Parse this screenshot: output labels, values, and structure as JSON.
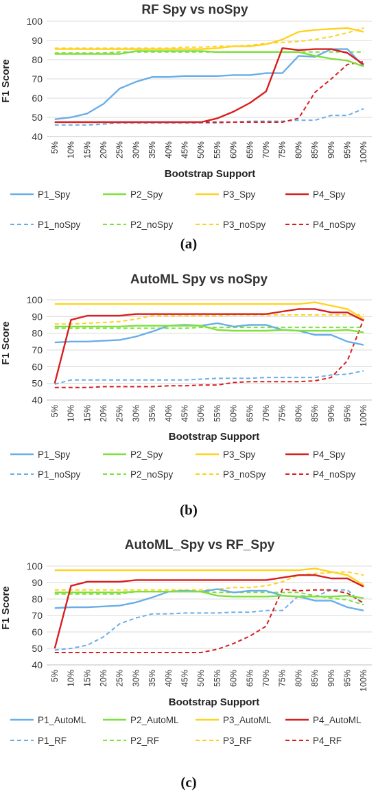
{
  "chart_data": [
    {
      "type": "line",
      "title": "RF Spy vs noSpy",
      "xlabel": "Bootstrap Support",
      "ylabel": "F1 Score",
      "panel_label": "(a)",
      "ylim": [
        40,
        100
      ],
      "yticks": [
        "40",
        "50",
        "60",
        "70",
        "80",
        "90",
        "100"
      ],
      "grid": "horizontal",
      "legend": "bottom",
      "categories": [
        "5%",
        "10%",
        "15%",
        "20%",
        "25%",
        "30%",
        "35%",
        "40%",
        "45%",
        "50%",
        "55%",
        "60%",
        "65%",
        "70%",
        "75%",
        "80%",
        "85%",
        "90%",
        "95%",
        "100%"
      ],
      "series": [
        {
          "name": "P1_Spy",
          "color": "#6aaee8",
          "dash": false,
          "values": [
            49,
            50,
            52,
            57,
            65,
            68.5,
            71,
            71,
            71.5,
            71.5,
            71.5,
            72,
            72,
            73,
            73,
            82,
            81.5,
            85.5,
            85.5,
            76.5
          ]
        },
        {
          "name": "P2_Spy",
          "color": "#7ee03c",
          "dash": false,
          "values": [
            83,
            83,
            83,
            83,
            83,
            84.5,
            84.5,
            84.5,
            84.5,
            84.5,
            84,
            84,
            84,
            84,
            84,
            84,
            82,
            80.5,
            79.5,
            76.5
          ]
        },
        {
          "name": "P3_Spy",
          "color": "#ffd21f",
          "dash": false,
          "values": [
            85.5,
            85.5,
            85.5,
            85.5,
            85.5,
            85.5,
            85.5,
            85.5,
            85.5,
            85.5,
            86,
            87,
            87,
            88,
            90.5,
            94.5,
            95.5,
            96,
            96.5,
            94.5
          ]
        },
        {
          "name": "P4_Spy",
          "color": "#d81e1e",
          "dash": false,
          "values": [
            47.5,
            47.5,
            47.5,
            47.5,
            47.5,
            47.5,
            47.5,
            47.5,
            47.5,
            47.5,
            49.5,
            53,
            57.5,
            63.5,
            86,
            85,
            85.5,
            85.5,
            83.5,
            77.5
          ]
        },
        {
          "name": "P1_noSpy",
          "color": "#6aaee8",
          "dash": true,
          "values": [
            46,
            46,
            46,
            46.5,
            47,
            47,
            47,
            47,
            47,
            47,
            47,
            47.5,
            48,
            48,
            48,
            48.5,
            48.5,
            51,
            51,
            54.5
          ]
        },
        {
          "name": "P2_noSpy",
          "color": "#7ee03c",
          "dash": true,
          "values": [
            83.5,
            83.5,
            83.5,
            83.5,
            84,
            84,
            84,
            84,
            84,
            84,
            84,
            84,
            84,
            84,
            84,
            84,
            84,
            84,
            84,
            84
          ]
        },
        {
          "name": "P3_noSpy",
          "color": "#ffd21f",
          "dash": true,
          "values": [
            86,
            86,
            86,
            86,
            86,
            86,
            86,
            86,
            86.5,
            86.5,
            87,
            87,
            87.5,
            88.5,
            89,
            89.5,
            90.5,
            92,
            94,
            96.5
          ]
        },
        {
          "name": "P4_noSpy",
          "color": "#d81e1e",
          "dash": true,
          "values": [
            47.5,
            47.5,
            47.5,
            47.5,
            47.5,
            47.5,
            47.5,
            47.5,
            47.5,
            47.5,
            47.5,
            47.5,
            47.5,
            47.5,
            47.5,
            49.5,
            63,
            70,
            77.5,
            79
          ]
        }
      ]
    },
    {
      "type": "line",
      "title": "AutoML Spy vs noSpy",
      "xlabel": "Bootstrap Support",
      "ylabel": "F1 Score",
      "panel_label": "(b)",
      "ylim": [
        40,
        100
      ],
      "yticks": [
        "40",
        "50",
        "60",
        "70",
        "80",
        "90",
        "100"
      ],
      "grid": "horizontal",
      "legend": "bottom",
      "categories": [
        "5%",
        "10%",
        "15%",
        "20%",
        "25%",
        "30%",
        "35%",
        "40%",
        "45%",
        "50%",
        "55%",
        "60%",
        "65%",
        "70%",
        "75%",
        "80%",
        "85%",
        "90%",
        "95%",
        "100%"
      ],
      "series": [
        {
          "name": "P1_Spy",
          "color": "#6aaee8",
          "dash": false,
          "values": [
            74.5,
            75,
            75,
            75.5,
            76,
            78,
            81,
            84.5,
            85,
            84.5,
            86,
            84,
            85,
            85,
            82,
            81.5,
            79,
            79,
            75,
            73
          ]
        },
        {
          "name": "P2_Spy",
          "color": "#7ee03c",
          "dash": false,
          "values": [
            84,
            84,
            84,
            84,
            84,
            84.5,
            84.5,
            84.5,
            84.5,
            84.5,
            82,
            81.5,
            81.5,
            81.5,
            82,
            81.5,
            81.5,
            81.5,
            82,
            80.5
          ]
        },
        {
          "name": "P3_Spy",
          "color": "#ffd21f",
          "dash": false,
          "values": [
            97.5,
            97.5,
            97.5,
            97.5,
            97.5,
            97.5,
            97.5,
            97.5,
            97.5,
            97.5,
            97.5,
            97.5,
            97.5,
            97.5,
            97.5,
            97.5,
            98.5,
            96.5,
            94.5,
            88.5
          ]
        },
        {
          "name": "P4_Spy",
          "color": "#d81e1e",
          "dash": false,
          "values": [
            50,
            88,
            90.5,
            90.5,
            90.5,
            91.5,
            91.5,
            91.5,
            91.5,
            91.5,
            91.5,
            91.5,
            91.5,
            91.5,
            93,
            94.5,
            94.5,
            92.5,
            92.5,
            87.5
          ]
        },
        {
          "name": "P1_noSpy",
          "color": "#6aaee8",
          "dash": true,
          "values": [
            49.5,
            52,
            52,
            52,
            52,
            52,
            52,
            52,
            52,
            52.5,
            53,
            53,
            53,
            53.5,
            53.5,
            53.5,
            53.5,
            55,
            55.5,
            57.5
          ]
        },
        {
          "name": "P2_noSpy",
          "color": "#7ee03c",
          "dash": true,
          "values": [
            83,
            83,
            83,
            83,
            83,
            83,
            83,
            83,
            83,
            83.5,
            83.5,
            83.5,
            83.5,
            83.5,
            83.5,
            83.5,
            83.5,
            83.5,
            83.5,
            83.5
          ]
        },
        {
          "name": "P3_noSpy",
          "color": "#ffd21f",
          "dash": true,
          "values": [
            85.5,
            85.5,
            86,
            86.5,
            87,
            88.5,
            90.5,
            90.5,
            90.5,
            90.5,
            90.5,
            91,
            91,
            91,
            91,
            91,
            91,
            91,
            91,
            91
          ]
        },
        {
          "name": "P4_noSpy",
          "color": "#d81e1e",
          "dash": true,
          "values": [
            47.5,
            47.5,
            47.5,
            48,
            48,
            48,
            48,
            48.5,
            48.5,
            49,
            49,
            50.5,
            51,
            51,
            51,
            51,
            51.5,
            53.5,
            63.5,
            88.5
          ]
        }
      ]
    },
    {
      "type": "line",
      "title": "AutoML_Spy vs RF_Spy",
      "xlabel": "Bootstrap Support",
      "ylabel": "F1 Score",
      "panel_label": "(c)",
      "ylim": [
        40,
        100
      ],
      "yticks": [
        "40",
        "50",
        "60",
        "70",
        "80",
        "90",
        "100"
      ],
      "grid": "horizontal",
      "legend": "bottom",
      "categories": [
        "5%",
        "10%",
        "15%",
        "20%",
        "25%",
        "30%",
        "35%",
        "40%",
        "45%",
        "50%",
        "55%",
        "60%",
        "65%",
        "70%",
        "75%",
        "80%",
        "85%",
        "90%",
        "95%",
        "100%"
      ],
      "series": [
        {
          "name": "P1_AutoML",
          "color": "#6aaee8",
          "dash": false,
          "values": [
            74.5,
            75,
            75,
            75.5,
            76,
            78,
            81,
            84.5,
            85,
            84.5,
            86,
            84,
            85,
            85,
            82,
            81.5,
            79,
            79,
            75,
            73
          ]
        },
        {
          "name": "P2_AutoML",
          "color": "#7ee03c",
          "dash": false,
          "values": [
            84,
            84,
            84,
            84,
            84,
            84.5,
            84.5,
            84.5,
            84.5,
            84.5,
            82,
            81.5,
            81.5,
            81.5,
            82,
            81.5,
            81.5,
            81.5,
            82,
            80.5
          ]
        },
        {
          "name": "P3_AutoML",
          "color": "#ffd21f",
          "dash": false,
          "values": [
            97.5,
            97.5,
            97.5,
            97.5,
            97.5,
            97.5,
            97.5,
            97.5,
            97.5,
            97.5,
            97.5,
            97.5,
            97.5,
            97.5,
            97.5,
            97.5,
            98.5,
            96.5,
            94.5,
            88.5
          ]
        },
        {
          "name": "P4_AutoML",
          "color": "#d81e1e",
          "dash": false,
          "values": [
            50,
            88,
            90.5,
            90.5,
            90.5,
            91.5,
            91.5,
            91.5,
            91.5,
            91.5,
            91.5,
            91.5,
            91.5,
            91.5,
            93,
            94.5,
            94.5,
            92.5,
            92.5,
            87.5
          ]
        },
        {
          "name": "P1_RF",
          "color": "#6aaee8",
          "dash": true,
          "values": [
            49,
            50,
            52,
            57,
            65,
            68.5,
            71,
            71,
            71.5,
            71.5,
            71.5,
            72,
            72,
            73,
            73,
            82,
            81.5,
            85.5,
            85.5,
            76.5
          ]
        },
        {
          "name": "P2_RF",
          "color": "#7ee03c",
          "dash": true,
          "values": [
            83,
            83,
            83,
            83,
            83,
            84.5,
            84.5,
            84.5,
            84.5,
            84.5,
            84,
            84,
            84,
            84,
            84,
            84,
            82,
            80.5,
            79.5,
            76.5
          ]
        },
        {
          "name": "P3_RF",
          "color": "#ffd21f",
          "dash": true,
          "values": [
            85.5,
            85.5,
            85.5,
            85.5,
            85.5,
            85.5,
            85.5,
            85.5,
            85.5,
            85.5,
            86,
            87,
            87,
            88,
            90.5,
            94.5,
            95.5,
            96,
            96.5,
            94.5
          ]
        },
        {
          "name": "P4_RF",
          "color": "#d81e1e",
          "dash": true,
          "values": [
            47.5,
            47.5,
            47.5,
            47.5,
            47.5,
            47.5,
            47.5,
            47.5,
            47.5,
            47.5,
            49.5,
            53,
            57.5,
            63.5,
            86,
            85,
            85.5,
            85.5,
            83.5,
            77.5
          ]
        }
      ]
    }
  ]
}
